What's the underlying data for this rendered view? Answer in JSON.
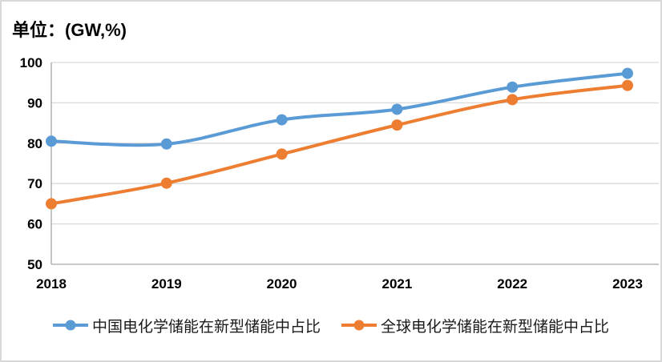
{
  "title": "单位：(GW,%)",
  "chart_data": {
    "type": "line",
    "title": "单位：(GW,%)",
    "categories": [
      "2018",
      "2019",
      "2020",
      "2021",
      "2022",
      "2023"
    ],
    "series": [
      {
        "name": "中国电化学储能在新型储能中占比",
        "color": "#5B9BD5",
        "values": [
          80.5,
          79.8,
          85.8,
          88.4,
          93.9,
          97.3
        ]
      },
      {
        "name": "全球电化学储能在新型储能中占比",
        "color": "#ED7D31",
        "values": [
          65.0,
          70.1,
          77.3,
          84.5,
          90.8,
          94.3
        ]
      }
    ],
    "xlabel": "",
    "ylabel": "",
    "ylim": [
      50,
      100
    ],
    "yticks": [
      50,
      60,
      70,
      80,
      90,
      100
    ],
    "grid": true,
    "line_style": "smooth",
    "marker": "circle",
    "legend_position": "bottom"
  },
  "colors": {
    "background": "#FFFFFF",
    "frame_border": "#D9D9D9",
    "gridline": "#D9D9D9",
    "axis": "#A6A6A6",
    "text": "#000000",
    "legend_text": "#1A1A1A",
    "series_china": "#5B9BD5",
    "series_global": "#ED7D31"
  }
}
